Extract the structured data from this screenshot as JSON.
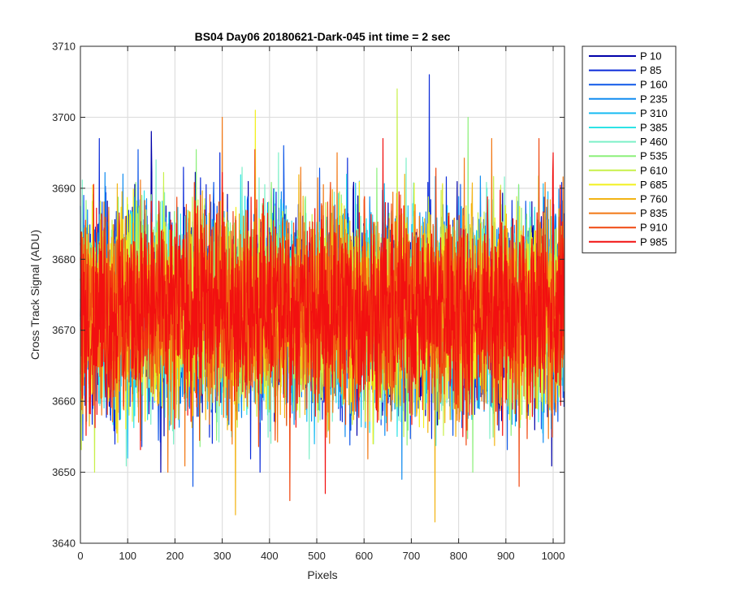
{
  "chart_data": {
    "type": "line",
    "title": "BS04 Day06 20180621-Dark-045 int time = 2 sec",
    "xlabel": "Pixels",
    "ylabel": "Cross Track Signal (ADU)",
    "xlim": [
      0,
      1024
    ],
    "ylim": [
      3640,
      3710
    ],
    "xticks": [
      0,
      100,
      200,
      300,
      400,
      500,
      600,
      700,
      800,
      900,
      1000
    ],
    "yticks": [
      3640,
      3650,
      3660,
      3670,
      3680,
      3690,
      3700,
      3710
    ],
    "xtick_labels": [
      "0",
      "100",
      "200",
      "300",
      "400",
      "500",
      "600",
      "700",
      "800",
      "900",
      "1000"
    ],
    "ytick_labels": [
      "3640",
      "3650",
      "3660",
      "3670",
      "3680",
      "3690",
      "3700",
      "3710"
    ],
    "grid": true,
    "legend_position": "outside-top-right",
    "n_points": 1024,
    "series": [
      {
        "name": "P 10",
        "color": "#0000AA",
        "mean": 3673,
        "std": 7,
        "extremes": [
          [
            150,
            3698
          ],
          [
            170,
            3650
          ]
        ]
      },
      {
        "name": "P 85",
        "color": "#0B2BD9",
        "mean": 3673,
        "std": 7,
        "extremes": [
          [
            40,
            3697
          ],
          [
            738,
            3706
          ],
          [
            380,
            3650
          ]
        ]
      },
      {
        "name": "P 160",
        "color": "#0F58E8",
        "mean": 3673,
        "std": 7,
        "extremes": [
          [
            238,
            3648
          ],
          [
            430,
            3696
          ]
        ]
      },
      {
        "name": "P 235",
        "color": "#118CF0",
        "mean": 3673,
        "std": 7,
        "extremes": [
          [
            680,
            3649
          ],
          [
            90,
            3692
          ]
        ]
      },
      {
        "name": "P 310",
        "color": "#17BBF2",
        "mean": 3673,
        "std": 7,
        "extremes": [
          [
            100,
            3652
          ],
          [
            590,
            3691
          ]
        ]
      },
      {
        "name": "P 385",
        "color": "#2EE3E6",
        "mean": 3673,
        "std": 7,
        "extremes": [
          [
            860,
            3690
          ],
          [
            320,
            3655
          ]
        ]
      },
      {
        "name": "P 460",
        "color": "#7DF0C8",
        "mean": 3673,
        "std": 7,
        "extremes": [
          [
            620,
            3654
          ],
          [
            160,
            3694
          ]
        ]
      },
      {
        "name": "P 535",
        "color": "#8CF07A",
        "mean": 3673,
        "std": 7,
        "extremes": [
          [
            820,
            3700
          ],
          [
            830,
            3650
          ]
        ]
      },
      {
        "name": "P 610",
        "color": "#C8F04A",
        "mean": 3673,
        "std": 7,
        "extremes": [
          [
            670,
            3704
          ],
          [
            30,
            3650
          ]
        ]
      },
      {
        "name": "P 685",
        "color": "#F2F01E",
        "mean": 3673,
        "std": 7,
        "extremes": [
          [
            370,
            3701
          ],
          [
            60,
            3660
          ]
        ]
      },
      {
        "name": "P 760",
        "color": "#F2B414",
        "mean": 3673,
        "std": 7,
        "extremes": [
          [
            328,
            3644
          ],
          [
            750,
            3643
          ]
        ]
      },
      {
        "name": "P 835",
        "color": "#F27814",
        "mean": 3673,
        "std": 7,
        "extremes": [
          [
            300,
            3700
          ],
          [
            185,
            3650
          ],
          [
            870,
            3697
          ]
        ]
      },
      {
        "name": "P 910",
        "color": "#F04810",
        "mean": 3673,
        "std": 7,
        "extremes": [
          [
            443,
            3646
          ],
          [
            928,
            3648
          ],
          [
            970,
            3697
          ]
        ]
      },
      {
        "name": "P 985",
        "color": "#F21010",
        "mean": 3673,
        "std": 7,
        "extremes": [
          [
            518,
            3647
          ],
          [
            640,
            3697
          ],
          [
            1000,
            3695
          ]
        ]
      }
    ]
  }
}
